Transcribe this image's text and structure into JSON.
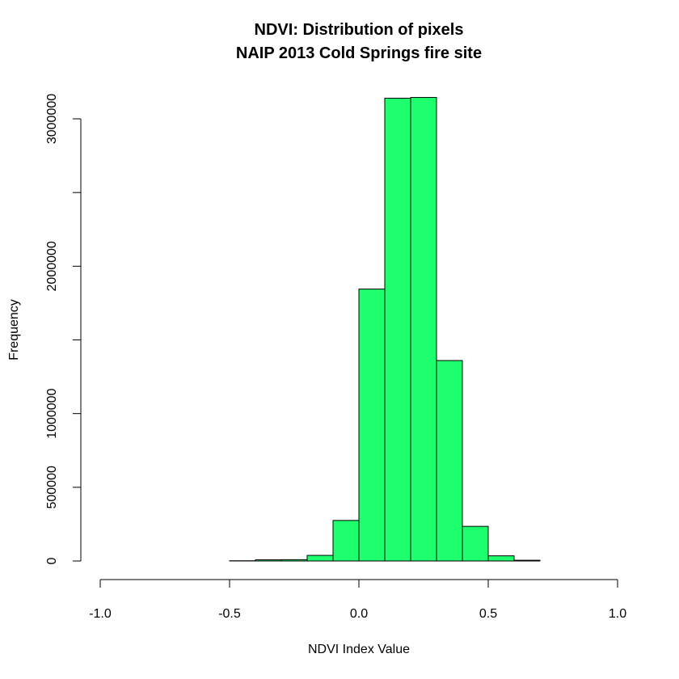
{
  "chart_data": {
    "type": "bar",
    "title": "NDVI: Distribution of pixels",
    "subtitle": "NAIP 2013 Cold Springs fire site",
    "xlabel": "NDVI Index Value",
    "ylabel": "Frequency",
    "xlim": [
      -1.0,
      1.0
    ],
    "ylim": [
      0,
      3150000
    ],
    "x_ticks": [
      -1.0,
      -0.5,
      0.0,
      0.5,
      1.0
    ],
    "x_tick_labels": [
      "-1.0",
      "-0.5",
      "0.0",
      "0.5",
      "1.0"
    ],
    "y_ticks": [
      0,
      500000,
      1000000,
      2000000,
      3000000
    ],
    "y_tick_labels": [
      "0",
      "500000",
      "1000000",
      "2000000",
      "3000000"
    ],
    "y_minor_ticks": [
      1500000,
      2500000
    ],
    "bar_color": "#1eff6e",
    "bin_edges": [
      -1.0,
      -0.9,
      -0.8,
      -0.7,
      -0.6,
      -0.5,
      -0.4,
      -0.3,
      -0.2,
      -0.1,
      0.0,
      0.1,
      0.2,
      0.3,
      0.4,
      0.5,
      0.6,
      0.7,
      0.8,
      0.9,
      1.0
    ],
    "values": [
      0,
      0,
      0,
      0,
      0,
      1500,
      8000,
      9000,
      38000,
      275000,
      1845000,
      3140000,
      3145000,
      1360000,
      235000,
      35000,
      5000,
      0,
      0,
      0
    ],
    "grid": false,
    "legend": "none"
  }
}
